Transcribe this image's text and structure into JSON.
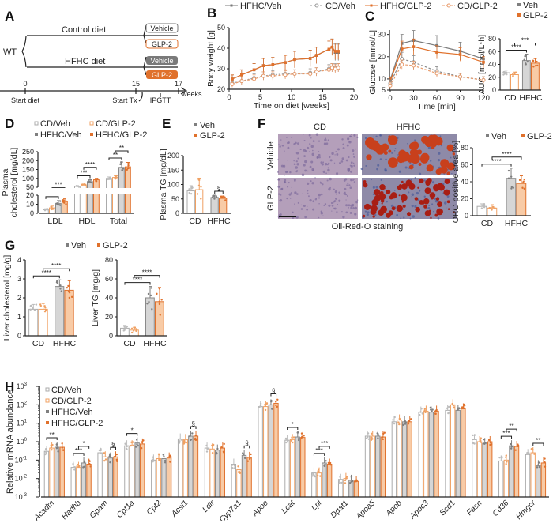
{
  "panel_labels": [
    "A",
    "B",
    "C",
    "D",
    "E",
    "F",
    "G",
    "H"
  ],
  "colors": {
    "veh": "#8a8a8a",
    "glp2": "#e0712c",
    "veh_light": "#d6d6d6",
    "glp2_light": "#f8cba6",
    "oro_red": "#c8401c",
    "hematoxylin": "#9a8fb5"
  },
  "panel_a": {
    "wt": "WT",
    "control_diet": "Control diet",
    "hfhc_diet": "HFHC diet",
    "treatments": [
      "Vehicle",
      "GLP-2",
      "Vehicle",
      "GLP-2"
    ],
    "timeline_ticks": [
      "0",
      "15",
      "17"
    ],
    "timeline_unit": "weeks",
    "events": [
      "Start diet",
      "Start Tx",
      "IPGTT"
    ]
  },
  "panel_f": {
    "columns": [
      "CD",
      "HFHC"
    ],
    "rows": [
      "Vehicle",
      "GLP-2"
    ],
    "caption": "Oil-Red-O staining"
  },
  "chart_data": [
    {
      "panel": "B",
      "type": "line",
      "xlabel": "Time on diet [weeks]",
      "ylabel": "Body weight [g]",
      "xlim": [
        0,
        20
      ],
      "ylim": [
        20,
        50
      ],
      "xticks": [
        0,
        5,
        10,
        15,
        20
      ],
      "yticks": [
        20,
        30,
        40,
        50
      ],
      "x": [
        0.5,
        2,
        4,
        5.5,
        7,
        9,
        10.5,
        13,
        14,
        16,
        16.5,
        17,
        17.5
      ],
      "series": [
        {
          "name": "HFHC/Veh",
          "values": [
            25,
            27,
            29.5,
            31.5,
            32,
            33,
            34.5,
            35,
            36.5,
            39.5,
            40.5,
            38,
            38
          ],
          "sd": [
            2,
            2.5,
            3,
            3.5,
            3.5,
            3.5,
            4,
            4,
            4,
            4,
            4,
            4,
            4
          ]
        },
        {
          "name": "CD/Veh",
          "values": [
            23,
            24,
            25.5,
            26.5,
            27,
            27.5,
            27.5,
            28,
            28.5,
            30,
            30.5,
            30.5,
            30.5
          ],
          "sd": [
            1.5,
            2,
            2,
            2,
            2,
            2,
            2,
            2,
            2,
            2,
            2,
            2,
            2
          ]
        },
        {
          "name": "HFHC/GLP-2",
          "values": [
            25,
            27,
            29.5,
            31.5,
            32,
            33,
            34.5,
            35,
            36.5,
            39.5,
            40.5,
            38.5,
            38.5
          ],
          "sd": [
            2,
            2.5,
            3,
            3.5,
            3.5,
            3.5,
            4,
            4,
            4,
            4,
            4,
            4,
            4
          ]
        },
        {
          "name": "CD/GLP-2",
          "values": [
            22.5,
            24,
            25,
            26.5,
            26.5,
            27,
            27.5,
            27.5,
            28.5,
            29.5,
            30.5,
            30,
            30.5
          ],
          "sd": [
            1.5,
            2,
            2,
            2,
            2,
            2,
            2,
            2,
            2,
            2,
            2,
            2,
            2
          ]
        }
      ],
      "legend": "top"
    },
    {
      "panel": "C",
      "type": "line",
      "xlabel": "Time [min]",
      "ylabel": "Glucose [mmol/L]",
      "xlim": [
        0,
        120
      ],
      "ylim": [
        5,
        32
      ],
      "xticks": [
        0,
        30,
        60,
        90,
        120
      ],
      "yticks": [
        5,
        10,
        20,
        30
      ],
      "x": [
        0,
        15,
        30,
        60,
        90,
        120
      ],
      "series": [
        {
          "name": "HFHC/Veh",
          "values": [
            9.5,
            26,
            27.3,
            25,
            22.5,
            19
          ],
          "sd": [
            1.5,
            4,
            4.5,
            4.5,
            4,
            3
          ]
        },
        {
          "name": "HFHC/GLP-2",
          "values": [
            9,
            23.5,
            24.5,
            22,
            21,
            17.5
          ],
          "sd": [
            1.5,
            3.5,
            3.5,
            3,
            3,
            2.5
          ]
        },
        {
          "name": "CD/Veh",
          "values": [
            8,
            19,
            17.5,
            13.5,
            11,
            9.5
          ],
          "sd": [
            1.5,
            3,
            3,
            2,
            1.5,
            1.5
          ]
        },
        {
          "name": "CD/GLP-2",
          "values": [
            7,
            16.5,
            16,
            12.5,
            11,
            9.5
          ],
          "sd": [
            1.5,
            2,
            2,
            1.5,
            1.5,
            1.5
          ]
        }
      ]
    },
    {
      "panel": "C",
      "type": "bar",
      "ylabel": "AUC [mmol/L*h]",
      "ylim": [
        0,
        80
      ],
      "yticks": [
        0,
        20,
        40,
        60,
        80
      ],
      "categories": [
        "CD",
        "HFHC"
      ],
      "series": [
        {
          "name": "Veh",
          "values": [
            27,
            46
          ],
          "sd": [
            4,
            10
          ]
        },
        {
          "name": "GLP-2",
          "values": [
            24,
            42
          ],
          "sd": [
            4,
            7
          ]
        }
      ],
      "significance": [
        {
          "bars": [
            0,
            2
          ],
          "label": "****"
        },
        {
          "bars": [
            1,
            3
          ],
          "label": "***"
        }
      ],
      "legend": "top-right"
    },
    {
      "panel": "D",
      "type": "bar",
      "ylabel": [
        "Plasma",
        "cholesterol [mg/dL]"
      ],
      "y_axis_break": [
        20,
        50
      ],
      "ylim": [
        0,
        250
      ],
      "yticks": [
        0,
        10,
        20,
        50,
        100,
        150,
        200,
        250
      ],
      "categories": [
        "LDL",
        "HDL",
        "Total"
      ],
      "series": [
        {
          "name": "CD/Veh",
          "values": [
            4,
            55,
            100
          ],
          "sd": [
            1,
            4,
            8
          ]
        },
        {
          "name": "CD/GLP-2",
          "values": [
            6,
            62,
            105
          ],
          "sd": [
            2,
            5,
            12
          ]
        },
        {
          "name": "HFHC/Veh",
          "values": [
            11,
            82,
            162
          ],
          "sd": [
            3,
            10,
            30
          ]
        },
        {
          "name": "HFHC/GLP-2",
          "values": [
            13,
            92,
            165
          ],
          "sd": [
            3,
            8,
            25
          ]
        }
      ],
      "significance": [
        {
          "bars": [
            0,
            2
          ],
          "label": "***"
        },
        {
          "bars": [
            1,
            3
          ],
          "label": "***"
        },
        {
          "bars": [
            4,
            6
          ],
          "label": "***"
        },
        {
          "bars": [
            5,
            7
          ],
          "label": "****"
        },
        {
          "bars": [
            8,
            10
          ],
          "label": "**"
        },
        {
          "bars": [
            9,
            11
          ],
          "label": "**"
        }
      ],
      "legend": "top"
    },
    {
      "panel": "E",
      "type": "bar",
      "ylabel": "Plasma TG [mg/dL]",
      "ylim": [
        0,
        200
      ],
      "yticks": [
        0,
        50,
        100,
        150,
        200
      ],
      "categories": [
        "CD",
        "HFHC"
      ],
      "series": [
        {
          "name": "Veh",
          "values": [
            78,
            55
          ],
          "sd": [
            18,
            8
          ]
        },
        {
          "name": "GLP-2",
          "values": [
            82,
            52
          ],
          "sd": [
            40,
            8
          ]
        }
      ],
      "significance": [
        {
          "bars": [
            2,
            3
          ],
          "label": "§"
        }
      ],
      "legend": "top"
    },
    {
      "panel": "F",
      "type": "bar",
      "ylabel": "ORO positive area [%]",
      "ylim": [
        0,
        80
      ],
      "yticks": [
        0,
        20,
        40,
        60,
        80
      ],
      "categories": [
        "CD",
        "HFHC"
      ],
      "series": [
        {
          "name": "Veh",
          "values": [
            11,
            44
          ],
          "sd": [
            3,
            12
          ]
        },
        {
          "name": "GLP-2",
          "values": [
            9,
            38
          ],
          "sd": [
            4,
            9
          ]
        }
      ],
      "significance": [
        {
          "bars": [
            0,
            2
          ],
          "label": "****"
        },
        {
          "bars": [
            1,
            3
          ],
          "label": "****"
        }
      ],
      "legend": "top"
    },
    {
      "panel": "G",
      "type": "bar",
      "ylabel": "Liver cholesterol [mg/g]",
      "ylim": [
        0,
        4
      ],
      "yticks": [
        0,
        1,
        2,
        3,
        4
      ],
      "categories": [
        "CD",
        "HFHC"
      ],
      "series": [
        {
          "name": "Veh",
          "values": [
            1.4,
            2.6
          ],
          "sd": [
            0.25,
            0.35
          ]
        },
        {
          "name": "GLP-2",
          "values": [
            1.4,
            2.4
          ],
          "sd": [
            0.3,
            0.5
          ]
        }
      ],
      "significance": [
        {
          "bars": [
            0,
            2
          ],
          "label": "****"
        },
        {
          "bars": [
            1,
            3
          ],
          "label": "****"
        }
      ],
      "legend": "top"
    },
    {
      "panel": "G",
      "type": "bar",
      "ylabel": "Liver TG [mg/g]",
      "ylim": [
        0,
        80
      ],
      "yticks": [
        0,
        20,
        40,
        60,
        80
      ],
      "categories": [
        "CD",
        "HFHC"
      ],
      "series": [
        {
          "name": "Veh",
          "values": [
            8,
            40
          ],
          "sd": [
            3,
            12
          ]
        },
        {
          "name": "GLP-2",
          "values": [
            6,
            36
          ],
          "sd": [
            3,
            15
          ]
        }
      ],
      "significance": [
        {
          "bars": [
            0,
            2
          ],
          "label": "****"
        },
        {
          "bars": [
            1,
            3
          ],
          "label": "****"
        }
      ]
    },
    {
      "panel": "H",
      "type": "bar",
      "scale": "log",
      "ylabel": "Relative mRNA abundance",
      "ylim": [
        0.001,
        1000
      ],
      "yticks_exp": [
        -3,
        -2,
        -1,
        0,
        1,
        2,
        3
      ],
      "categories": [
        "Acadm",
        "Hadhb",
        "Gpam",
        "Cpt1a",
        "Cpt2",
        "Acsl1",
        "Ldlr",
        "Cyp7a1",
        "Apoe",
        "Lcat",
        "Lpl",
        "Dgat1",
        "Apoa5",
        "Apob",
        "Apoc3",
        "Scd1",
        "Fasn",
        "Cd36",
        "Hmgcr"
      ],
      "series": [
        {
          "name": "CD/Veh",
          "values": [
            0.3,
            0.04,
            0.25,
            0.6,
            0.1,
            1.4,
            0.45,
            0.06,
            80,
            1.2,
            0.02,
            0.009,
            2,
            12,
            40,
            50,
            1.3,
            0.09,
            0.2
          ]
        },
        {
          "name": "CD/GLP-2",
          "values": [
            0.45,
            0.04,
            0.15,
            0.6,
            0.12,
            1.3,
            0.4,
            0.03,
            80,
            1.3,
            0.02,
            0.01,
            2,
            15,
            45,
            100,
            1.0,
            0.1,
            0.25
          ]
        },
        {
          "name": "HFHC/Veh",
          "values": [
            0.5,
            0.07,
            0.13,
            0.85,
            0.12,
            2.0,
            0.35,
            0.18,
            100,
            1.8,
            0.07,
            0.008,
            2,
            12,
            40,
            50,
            0.8,
            0.6,
            0.05
          ]
        },
        {
          "name": "HFHC/GLP-2",
          "values": [
            0.5,
            0.06,
            0.15,
            0.75,
            0.13,
            2.0,
            0.45,
            0.14,
            120,
            1.7,
            0.06,
            0.007,
            1.8,
            12,
            45,
            60,
            1.0,
            0.55,
            0.07
          ]
        }
      ],
      "significance": [
        {
          "bars": [
            0,
            2
          ],
          "label": "**"
        },
        {
          "bars": [
            4,
            6
          ],
          "label": "***"
        },
        {
          "bars": [
            5,
            7
          ],
          "label": "*"
        },
        {
          "bars": [
            10,
            11
          ],
          "label": "§"
        },
        {
          "bars": [
            12,
            14
          ],
          "label": "*"
        },
        {
          "bars": [
            22,
            23
          ],
          "label": "§"
        },
        {
          "bars": [
            30,
            31
          ],
          "label": "§"
        },
        {
          "bars": [
            34,
            35
          ],
          "label": "§"
        },
        {
          "bars": [
            36,
            38
          ],
          "label": "*"
        },
        {
          "bars": [
            40,
            42
          ],
          "label": "***"
        },
        {
          "bars": [
            41,
            43
          ],
          "label": "***"
        },
        {
          "bars": [
            68,
            70
          ],
          "label": "***"
        },
        {
          "bars": [
            69,
            71
          ],
          "label": "**"
        },
        {
          "bars": [
            73,
            75
          ],
          "label": "**"
        }
      ],
      "legend": "top-left"
    }
  ]
}
